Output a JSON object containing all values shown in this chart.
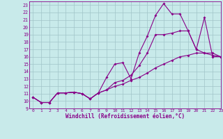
{
  "xlabel": "Windchill (Refroidissement éolien,°C)",
  "bg_color": "#c8eaea",
  "grid_color": "#a0c4c8",
  "line_color": "#880088",
  "xlim": [
    -0.5,
    23
  ],
  "ylim": [
    9,
    23.5
  ],
  "xticks": [
    0,
    1,
    2,
    3,
    4,
    5,
    6,
    7,
    8,
    9,
    10,
    11,
    12,
    13,
    14,
    15,
    16,
    17,
    18,
    19,
    20,
    21,
    22,
    23
  ],
  "yticks": [
    9,
    10,
    11,
    12,
    13,
    14,
    15,
    16,
    17,
    18,
    19,
    20,
    21,
    22,
    23
  ],
  "line1_x": [
    0,
    1,
    2,
    3,
    4,
    5,
    6,
    7,
    8,
    9,
    10,
    11,
    12,
    13,
    14,
    15,
    16,
    17,
    18,
    19,
    20,
    21,
    22,
    23
  ],
  "line1_y": [
    10.5,
    9.8,
    9.8,
    11.1,
    11.1,
    11.2,
    11.0,
    10.3,
    11.1,
    13.2,
    15.0,
    15.2,
    13.0,
    16.5,
    18.8,
    21.6,
    23.2,
    21.8,
    21.8,
    19.5,
    17.0,
    21.3,
    16.0,
    16.0
  ],
  "line2_x": [
    0,
    1,
    2,
    3,
    4,
    5,
    6,
    7,
    8,
    9,
    10,
    11,
    12,
    13,
    14,
    15,
    16,
    17,
    18,
    19,
    20,
    21,
    22,
    23
  ],
  "line2_y": [
    10.5,
    9.8,
    9.8,
    11.1,
    11.1,
    11.2,
    11.0,
    10.3,
    11.1,
    11.5,
    12.5,
    12.8,
    13.5,
    14.8,
    16.5,
    19.0,
    19.0,
    19.2,
    19.5,
    19.5,
    17.0,
    16.5,
    16.5,
    16.0
  ],
  "line3_x": [
    0,
    1,
    2,
    3,
    4,
    5,
    6,
    7,
    8,
    9,
    10,
    11,
    12,
    13,
    14,
    15,
    16,
    17,
    18,
    19,
    20,
    21,
    22,
    23
  ],
  "line3_y": [
    10.5,
    9.8,
    9.8,
    11.1,
    11.1,
    11.2,
    11.0,
    10.3,
    11.1,
    11.5,
    12.0,
    12.3,
    12.8,
    13.2,
    13.8,
    14.5,
    15.0,
    15.5,
    16.0,
    16.2,
    16.5,
    16.5,
    16.2,
    16.0
  ]
}
